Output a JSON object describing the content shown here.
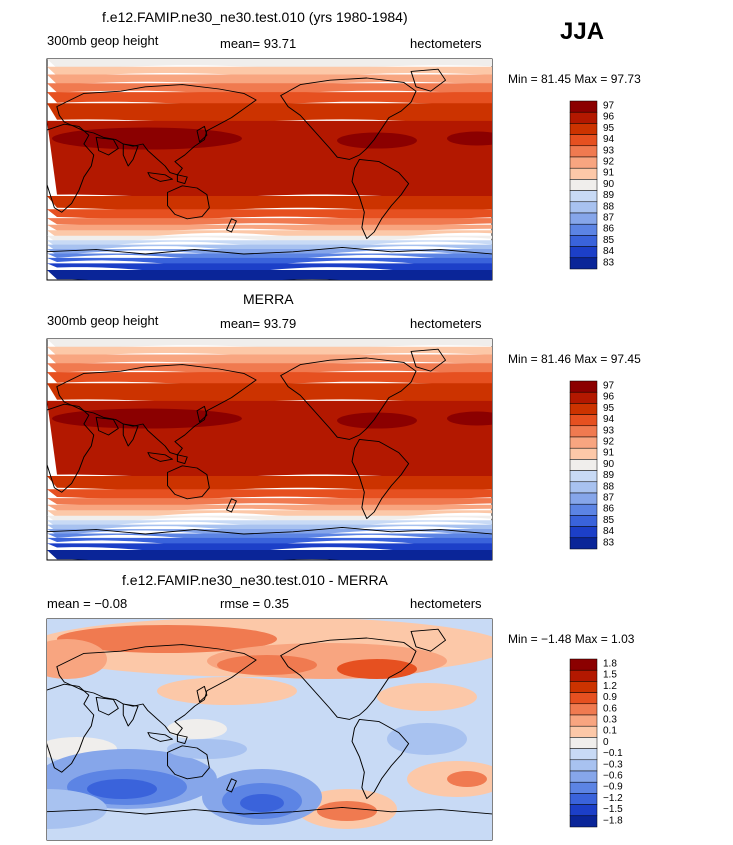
{
  "season": "JJA",
  "chart_data": [
    {
      "type": "contour-map",
      "title": "f.e12.FAMIP.ne30_ne30.test.010 (yrs 1980-1984)",
      "left_label": "300mb geop height",
      "center_label": "mean=  93.71",
      "right_label": "hectometers",
      "minmax_label": "Min =  81.45 Max =  97.73",
      "min": 81.45,
      "max": 97.73,
      "mean": 93.71,
      "levels": [
        "97",
        "96",
        "95",
        "94",
        "93",
        "92",
        "91",
        "90",
        "89",
        "88",
        "87",
        "86",
        "85",
        "84",
        "83"
      ],
      "colors": [
        "#8b0000",
        "#b31800",
        "#cc3300",
        "#e65020",
        "#f07a50",
        "#f8a580",
        "#fcc8a8",
        "#f0eeec",
        "#c8daf5",
        "#a8c2f0",
        "#86a6ea",
        "#5c84e4",
        "#3a63db",
        "#1c3fc8",
        "#0a2598"
      ]
    },
    {
      "type": "contour-map",
      "title": "MERRA",
      "left_label": "300mb geop height",
      "center_label": "mean=  93.79",
      "right_label": "hectometers",
      "minmax_label": "Min =  81.46 Max =  97.45",
      "min": 81.46,
      "max": 97.45,
      "mean": 93.79,
      "levels": [
        "97",
        "96",
        "95",
        "94",
        "93",
        "92",
        "91",
        "90",
        "89",
        "88",
        "87",
        "86",
        "85",
        "84",
        "83"
      ],
      "colors": [
        "#8b0000",
        "#b31800",
        "#cc3300",
        "#e65020",
        "#f07a50",
        "#f8a580",
        "#fcc8a8",
        "#f0eeec",
        "#c8daf5",
        "#a8c2f0",
        "#86a6ea",
        "#5c84e4",
        "#3a63db",
        "#1c3fc8",
        "#0a2598"
      ]
    },
    {
      "type": "contour-map",
      "title": "f.e12.FAMIP.ne30_ne30.test.010 - MERRA",
      "left_label": "mean =  −0.08",
      "center_label": "rmse =   0.35",
      "right_label": "hectometers",
      "minmax_label": "Min =  −1.48 Max =   1.03",
      "min": -1.48,
      "max": 1.03,
      "mean": -0.08,
      "rmse": 0.35,
      "levels": [
        "1.8",
        "1.5",
        "1.2",
        "0.9",
        "0.6",
        "0.3",
        "0.1",
        "0",
        "−0.1",
        "−0.3",
        "−0.6",
        "−0.9",
        "−1.2",
        "−1.5",
        "−1.8"
      ],
      "colors": [
        "#8b0000",
        "#b31800",
        "#cc3300",
        "#e65020",
        "#f07a50",
        "#f8a580",
        "#fcc8a8",
        "#f0eeec",
        "#c8daf5",
        "#a8c2f0",
        "#86a6ea",
        "#5c84e4",
        "#3a63db",
        "#1c3fc8",
        "#0a2598"
      ]
    }
  ]
}
